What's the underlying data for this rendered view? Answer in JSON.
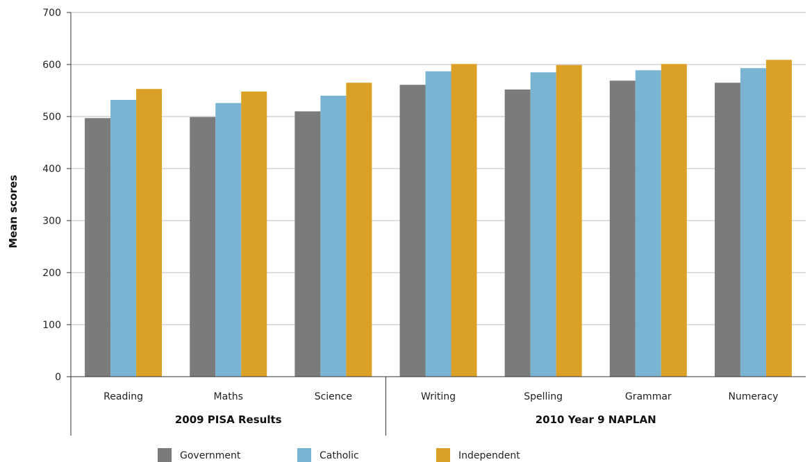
{
  "chart_data": {
    "type": "bar",
    "ylabel": "Mean scores",
    "ylim": [
      0,
      700
    ],
    "yticks": [
      0,
      100,
      200,
      300,
      400,
      500,
      600,
      700
    ],
    "grid": true,
    "categories": [
      "Reading",
      "Maths",
      "Science",
      "Writing",
      "Spelling",
      "Grammar",
      "Numeracy"
    ],
    "groups": [
      {
        "label": "2009 PISA Results",
        "categories": [
          "Reading",
          "Maths",
          "Science"
        ]
      },
      {
        "label": "2010 Year 9 NAPLAN",
        "categories": [
          "Writing",
          "Spelling",
          "Grammar",
          "Numeracy"
        ]
      }
    ],
    "series": [
      {
        "name": "Government",
        "color": "#7b7b7b",
        "values": [
          497,
          499,
          510,
          561,
          552,
          569,
          565
        ]
      },
      {
        "name": "Catholic",
        "color": "#7ab4d3",
        "values": [
          532,
          526,
          540,
          587,
          585,
          589,
          593
        ]
      },
      {
        "name": "Independent",
        "color": "#dba126",
        "values": [
          553,
          548,
          565,
          601,
          599,
          601,
          609
        ]
      }
    ],
    "legend_position": "bottom"
  }
}
